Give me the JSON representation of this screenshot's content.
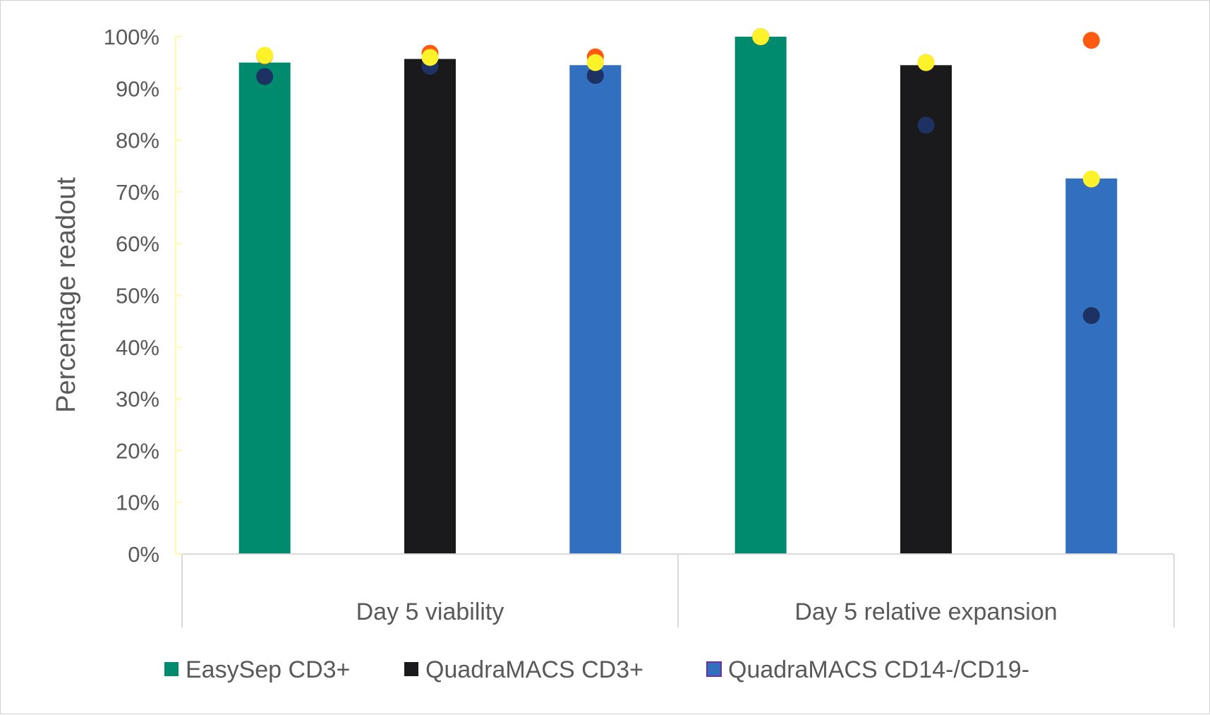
{
  "chart_data": {
    "type": "bar",
    "title": "",
    "ylabel": "Percentage readout",
    "xlabel": "",
    "ylim": [
      0,
      100
    ],
    "yticks": [
      "0%",
      "10%",
      "20%",
      "30%",
      "40%",
      "50%",
      "60%",
      "70%",
      "80%",
      "90%",
      "100%"
    ],
    "groups": [
      "Day 5 viability",
      "Day 5 relative expansion"
    ],
    "series": [
      {
        "name": "EasySep CD3+",
        "color": "#008a6e",
        "values": [
          95,
          100
        ]
      },
      {
        "name": "QuadraMACS CD3+",
        "color": "#1a1a1c",
        "values": [
          95.7,
          94.5
        ]
      },
      {
        "name": "QuadraMACS CD14-/CD19-",
        "color": "#3270bf",
        "values": [
          94.5,
          72.6
        ]
      }
    ],
    "replicates": [
      {
        "color": "#1e3163",
        "values": [
          [
            92.3,
            100
          ],
          [
            94.3,
            82.9
          ],
          [
            92.5,
            46.1
          ]
        ]
      },
      {
        "color": "#ff5a0f",
        "values": [
          [
            96.3,
            100
          ],
          [
            96.8,
            95
          ],
          [
            96.1,
            99.3
          ]
        ]
      },
      {
        "color": "#fef32a",
        "values": [
          [
            96.4,
            100
          ],
          [
            96,
            95
          ],
          [
            95,
            72.5
          ]
        ]
      }
    ],
    "legend_position": "bottom"
  }
}
